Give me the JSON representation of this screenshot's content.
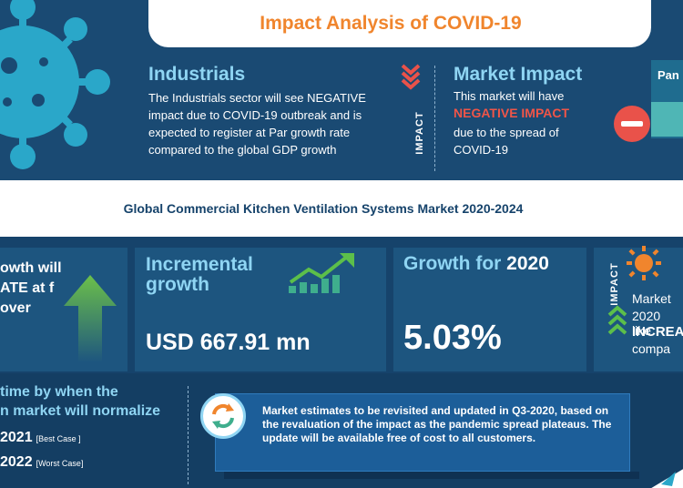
{
  "title": "Impact Analysis of COVID-19",
  "industrials": {
    "heading": "Industrials",
    "body": "The Industrials sector will see NEGATIVE impact due to COVID-19 outbreak and is expected to register at Par growth rate compared to the global GDP growth"
  },
  "impact_label": "IMPACT",
  "market_impact": {
    "heading": "Market Impact",
    "line1": "This market will have",
    "emphasis": "NEGATIVE IMPACT",
    "line2": "due to the spread of COVID-19"
  },
  "pandemic_label": "Pan",
  "subtitle": "Global Commercial Kitchen Ventilation Systems Market 2020-2024",
  "growth_card": {
    "text": "owth will ATE at f over"
  },
  "incremental": {
    "label_line1": "Incremental",
    "label_line2": "growth",
    "value": "USD 667.91 mn"
  },
  "growth_2020": {
    "label": "Growth for",
    "year": "2020",
    "value": "5.03%"
  },
  "impact_card": {
    "label": "IMPACT",
    "line1": "Market",
    "line2": "2020 like",
    "line3": "INCREA",
    "line4": "compa"
  },
  "normalize": {
    "line1": "time by when the",
    "line2": "n market will normalize",
    "best_year": "2021",
    "best_tag": "[Best Case ]",
    "worst_year": "2022",
    "worst_tag": "[Worst Case]"
  },
  "note": "Market estimates to be revisited and updated in Q3-2020, based on the revaluation of the impact as the pandemic spread plateaus. The update will be available free of cost to all customers.",
  "colors": {
    "accent_orange": "#f0852d",
    "negative_red": "#f05548",
    "light_blue": "#8fd5f3",
    "green": "#5cbf4a",
    "navy": "#16436b"
  }
}
